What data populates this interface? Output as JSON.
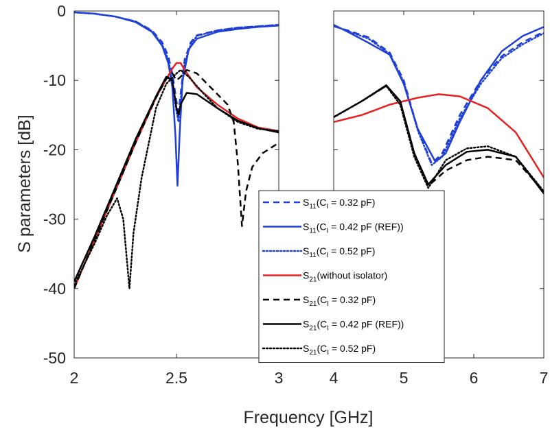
{
  "chart_data": {
    "type": "line",
    "xlabel": "Frequency [GHz]",
    "ylabel": "S parameters [dB]",
    "ylim": [
      -50,
      0
    ],
    "yticks": [
      0,
      -10,
      -20,
      -30,
      -40,
      -50
    ],
    "grid": false,
    "legend_position": "center-right",
    "panels": [
      {
        "name": "left",
        "xlim": [
          2,
          3
        ],
        "xticks": [
          2,
          2.5,
          3
        ],
        "xtick_labels": [
          "2",
          "2.5",
          "3"
        ]
      },
      {
        "name": "right",
        "xlim": [
          4,
          7
        ],
        "xticks": [
          4,
          5,
          6,
          7
        ],
        "xtick_labels": [
          "4",
          "5",
          "6",
          "7"
        ]
      }
    ],
    "series": [
      {
        "legend": {
          "main": "S",
          "sub": "11",
          "rest": "(C",
          "rest_sub": "I",
          "tail": " = 0.32 pF)"
        },
        "color": "#1f3fd6",
        "dash": "dashed",
        "width": 2.5,
        "points_left": [
          [
            2.0,
            -0.2
          ],
          [
            2.1,
            -0.4
          ],
          [
            2.2,
            -0.8
          ],
          [
            2.3,
            -1.5
          ],
          [
            2.38,
            -2.8
          ],
          [
            2.43,
            -4.5
          ],
          [
            2.46,
            -6.5
          ],
          [
            2.48,
            -9
          ],
          [
            2.5,
            -13
          ],
          [
            2.51,
            -14.5
          ],
          [
            2.52,
            -12
          ],
          [
            2.54,
            -7
          ],
          [
            2.57,
            -4.5
          ],
          [
            2.6,
            -3.5
          ],
          [
            2.7,
            -2.8
          ],
          [
            2.8,
            -2.4
          ],
          [
            2.9,
            -2.2
          ],
          [
            3.0,
            -2.0
          ]
        ],
        "points_right": [
          [
            4.0,
            -2.2
          ],
          [
            4.2,
            -2.8
          ],
          [
            4.5,
            -3.8
          ],
          [
            4.8,
            -6.0
          ],
          [
            5.0,
            -10.0
          ],
          [
            5.2,
            -17.0
          ],
          [
            5.4,
            -22.0
          ],
          [
            5.55,
            -20.5
          ],
          [
            5.8,
            -15.0
          ],
          [
            6.1,
            -10.0
          ],
          [
            6.4,
            -6.5
          ],
          [
            6.7,
            -4.5
          ],
          [
            7.0,
            -3.0
          ]
        ]
      },
      {
        "legend": {
          "main": "S",
          "sub": "11",
          "rest": "(C",
          "rest_sub": "I",
          "tail": " = 0.42 pF (REF))"
        },
        "color": "#1f3fd6",
        "dash": "solid",
        "width": 2.5,
        "points_left": [
          [
            2.0,
            -0.2
          ],
          [
            2.1,
            -0.4
          ],
          [
            2.2,
            -0.8
          ],
          [
            2.3,
            -1.6
          ],
          [
            2.38,
            -3.0
          ],
          [
            2.43,
            -5.0
          ],
          [
            2.46,
            -7.5
          ],
          [
            2.48,
            -11
          ],
          [
            2.495,
            -18
          ],
          [
            2.505,
            -25.2
          ],
          [
            2.515,
            -18
          ],
          [
            2.53,
            -10
          ],
          [
            2.56,
            -5.5
          ],
          [
            2.6,
            -4.0
          ],
          [
            2.7,
            -3.0
          ],
          [
            2.8,
            -2.6
          ],
          [
            2.9,
            -2.3
          ],
          [
            3.0,
            -2.1
          ]
        ],
        "points_right": [
          [
            4.0,
            -2.0
          ],
          [
            4.2,
            -3.0
          ],
          [
            4.5,
            -4.6
          ],
          [
            4.8,
            -6.3
          ],
          [
            5.0,
            -10.5
          ],
          [
            5.2,
            -17.0
          ],
          [
            5.45,
            -21.7
          ],
          [
            5.6,
            -20.5
          ],
          [
            5.8,
            -16.0
          ],
          [
            6.1,
            -10.0
          ],
          [
            6.4,
            -5.8
          ],
          [
            6.7,
            -3.6
          ],
          [
            7.0,
            -2.3
          ]
        ]
      },
      {
        "legend": {
          "main": "S",
          "sub": "11",
          "rest": "(C",
          "rest_sub": "I",
          "tail": " = 0.52 pF)"
        },
        "color": "#1f3fd6",
        "dash": "dotted",
        "width": 2.5,
        "points_left": [
          [
            2.0,
            -0.2
          ],
          [
            2.1,
            -0.4
          ],
          [
            2.2,
            -0.8
          ],
          [
            2.3,
            -1.5
          ],
          [
            2.38,
            -2.9
          ],
          [
            2.43,
            -4.8
          ],
          [
            2.46,
            -7.0
          ],
          [
            2.48,
            -10
          ],
          [
            2.5,
            -14.5
          ],
          [
            2.51,
            -16
          ],
          [
            2.52,
            -13
          ],
          [
            2.54,
            -7.5
          ],
          [
            2.57,
            -4.8
          ],
          [
            2.6,
            -3.6
          ],
          [
            2.7,
            -2.8
          ],
          [
            2.8,
            -2.4
          ],
          [
            2.9,
            -2.2
          ],
          [
            3.0,
            -2.0
          ]
        ],
        "points_right": [
          [
            4.0,
            -2.1
          ],
          [
            4.2,
            -2.9
          ],
          [
            4.5,
            -4.0
          ],
          [
            4.8,
            -6.2
          ],
          [
            5.0,
            -10.2
          ],
          [
            5.2,
            -17.2
          ],
          [
            5.4,
            -22.2
          ],
          [
            5.55,
            -21.0
          ],
          [
            5.8,
            -15.5
          ],
          [
            6.1,
            -10.5
          ],
          [
            6.4,
            -6.8
          ],
          [
            6.7,
            -4.8
          ],
          [
            7.0,
            -3.2
          ]
        ]
      },
      {
        "legend": {
          "main": "S",
          "sub": "21",
          "rest": "(without isolator)",
          "rest_sub": "",
          "tail": ""
        },
        "color": "#e8201f",
        "dash": "solid",
        "width": 2.5,
        "points_left": [
          [
            2.0,
            -40.0
          ],
          [
            2.1,
            -33.0
          ],
          [
            2.2,
            -26.0
          ],
          [
            2.3,
            -19.0
          ],
          [
            2.4,
            -12.5
          ],
          [
            2.45,
            -9.8
          ],
          [
            2.48,
            -8.3
          ],
          [
            2.5,
            -7.5
          ],
          [
            2.52,
            -7.5
          ],
          [
            2.54,
            -8.5
          ],
          [
            2.6,
            -11.0
          ],
          [
            2.7,
            -13.5
          ],
          [
            2.8,
            -15.5
          ],
          [
            2.9,
            -16.8
          ],
          [
            3.0,
            -17.3
          ]
        ],
        "points_right": [
          [
            4.0,
            -16.0
          ],
          [
            4.4,
            -15.0
          ],
          [
            4.8,
            -13.5
          ],
          [
            5.2,
            -12.5
          ],
          [
            5.5,
            -12.0
          ],
          [
            5.8,
            -12.3
          ],
          [
            6.2,
            -14.0
          ],
          [
            6.6,
            -17.5
          ],
          [
            7.0,
            -24.0
          ]
        ]
      },
      {
        "legend": {
          "main": "S",
          "sub": "21",
          "rest": "(C",
          "rest_sub": "I",
          "tail": " = 0.32 pF)"
        },
        "color": "#000000",
        "dash": "dashed",
        "width": 2.5,
        "points_left": [
          [
            2.0,
            -40.0
          ],
          [
            2.1,
            -33.0
          ],
          [
            2.2,
            -26.0
          ],
          [
            2.3,
            -19.0
          ],
          [
            2.4,
            -12.5
          ],
          [
            2.45,
            -9.8
          ],
          [
            2.48,
            -9.0
          ],
          [
            2.5,
            -10.0
          ],
          [
            2.52,
            -9.5
          ],
          [
            2.55,
            -8.5
          ],
          [
            2.6,
            -9.0
          ],
          [
            2.65,
            -10.5
          ],
          [
            2.7,
            -12.0
          ],
          [
            2.75,
            -13.5
          ],
          [
            2.78,
            -16.0
          ],
          [
            2.8,
            -22.0
          ],
          [
            2.82,
            -31.0
          ],
          [
            2.84,
            -26.0
          ],
          [
            2.87,
            -22.5
          ],
          [
            2.92,
            -20.5
          ],
          [
            3.0,
            -19.0
          ]
        ],
        "points_right": [
          [
            4.0,
            -15.3
          ],
          [
            4.4,
            -13.0
          ],
          [
            4.75,
            -10.8
          ],
          [
            4.95,
            -13.0
          ],
          [
            5.15,
            -20.5
          ],
          [
            5.35,
            -25.2
          ],
          [
            5.6,
            -23.0
          ],
          [
            5.9,
            -21.5
          ],
          [
            6.2,
            -21.0
          ],
          [
            6.6,
            -21.5
          ],
          [
            7.0,
            -26.0
          ]
        ]
      },
      {
        "legend": {
          "main": "S",
          "sub": "21",
          "rest": "(C",
          "rest_sub": "I",
          "tail": " = 0.42 pF (REF))"
        },
        "color": "#000000",
        "dash": "solid",
        "width": 2.5,
        "points_left": [
          [
            2.0,
            -39.0
          ],
          [
            2.1,
            -32.5
          ],
          [
            2.2,
            -25.5
          ],
          [
            2.3,
            -18.5
          ],
          [
            2.4,
            -12.3
          ],
          [
            2.45,
            -9.5
          ],
          [
            2.48,
            -10.0
          ],
          [
            2.5,
            -14.0
          ],
          [
            2.51,
            -15.0
          ],
          [
            2.52,
            -13.5
          ],
          [
            2.55,
            -11.8
          ],
          [
            2.6,
            -12.0
          ],
          [
            2.7,
            -14.0
          ],
          [
            2.8,
            -15.8
          ],
          [
            2.9,
            -16.9
          ],
          [
            3.0,
            -17.5
          ]
        ],
        "points_right": [
          [
            4.0,
            -15.3
          ],
          [
            4.4,
            -13.0
          ],
          [
            4.75,
            -10.7
          ],
          [
            4.95,
            -13.0
          ],
          [
            5.15,
            -20.5
          ],
          [
            5.35,
            -25.0
          ],
          [
            5.6,
            -22.2
          ],
          [
            5.9,
            -20.3
          ],
          [
            6.2,
            -20.0
          ],
          [
            6.6,
            -21.0
          ],
          [
            7.0,
            -26.3
          ]
        ]
      },
      {
        "legend": {
          "main": "S",
          "sub": "21",
          "rest": "(C",
          "rest_sub": "I",
          "tail": " = 0.52 pF)"
        },
        "color": "#000000",
        "dash": "dotted",
        "width": 2.5,
        "points_left": [
          [
            2.0,
            -39.5
          ],
          [
            2.1,
            -33.5
          ],
          [
            2.16,
            -29.5
          ],
          [
            2.21,
            -27.0
          ],
          [
            2.24,
            -30.0
          ],
          [
            2.27,
            -40.0
          ],
          [
            2.29,
            -32.0
          ],
          [
            2.33,
            -24.0
          ],
          [
            2.4,
            -14.0
          ],
          [
            2.45,
            -10.5
          ],
          [
            2.5,
            -9.0
          ],
          [
            2.52,
            -8.5
          ],
          [
            2.56,
            -9.5
          ],
          [
            2.62,
            -11.5
          ],
          [
            2.7,
            -14.0
          ],
          [
            2.8,
            -16.0
          ],
          [
            2.9,
            -17.0
          ],
          [
            3.0,
            -17.3
          ]
        ],
        "points_right": [
          [
            4.0,
            -15.3
          ],
          [
            4.4,
            -13.0
          ],
          [
            4.75,
            -10.8
          ],
          [
            4.95,
            -13.5
          ],
          [
            5.15,
            -21.0
          ],
          [
            5.35,
            -25.5
          ],
          [
            5.6,
            -21.5
          ],
          [
            5.9,
            -19.8
          ],
          [
            6.2,
            -19.5
          ],
          [
            6.6,
            -21.0
          ],
          [
            7.0,
            -26.0
          ]
        ]
      }
    ]
  }
}
